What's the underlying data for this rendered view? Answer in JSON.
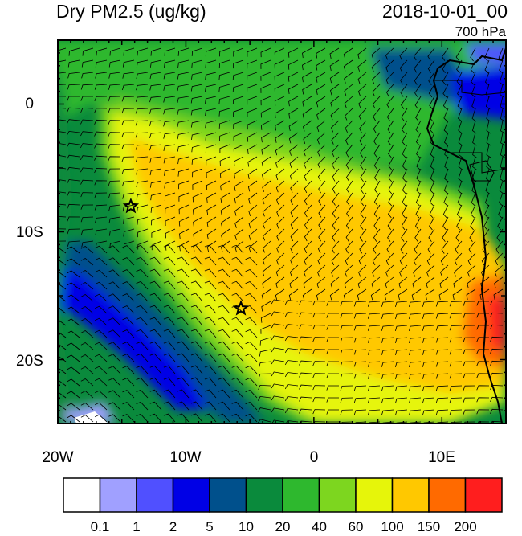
{
  "title_left": "Dry PM2.5 (ug/kg)",
  "title_right": "2018-10-01_00",
  "level": "700 hPa",
  "lat_labels": [
    "0",
    "10S",
    "20S"
  ],
  "lon_labels": [
    "20W",
    "10W",
    "0",
    "10E"
  ],
  "colorbar": {
    "colors": [
      "#ffffff",
      "#a0a0ff",
      "#5050ff",
      "#0000e6",
      "#00508c",
      "#0a8a3c",
      "#2eb82e",
      "#7dd61f",
      "#e6f50a",
      "#ffc800",
      "#ff6a00",
      "#ff1e1e"
    ],
    "labels": [
      "0.1",
      "1",
      "2",
      "5",
      "10",
      "20",
      "40",
      "60",
      "100",
      "150",
      "200"
    ]
  },
  "markers": [
    {
      "name": "star-marker-west",
      "lon": -14.3,
      "lat": -8.0
    },
    {
      "name": "star-marker-central",
      "lon": -5.7,
      "lat": -16.0
    }
  ]
}
